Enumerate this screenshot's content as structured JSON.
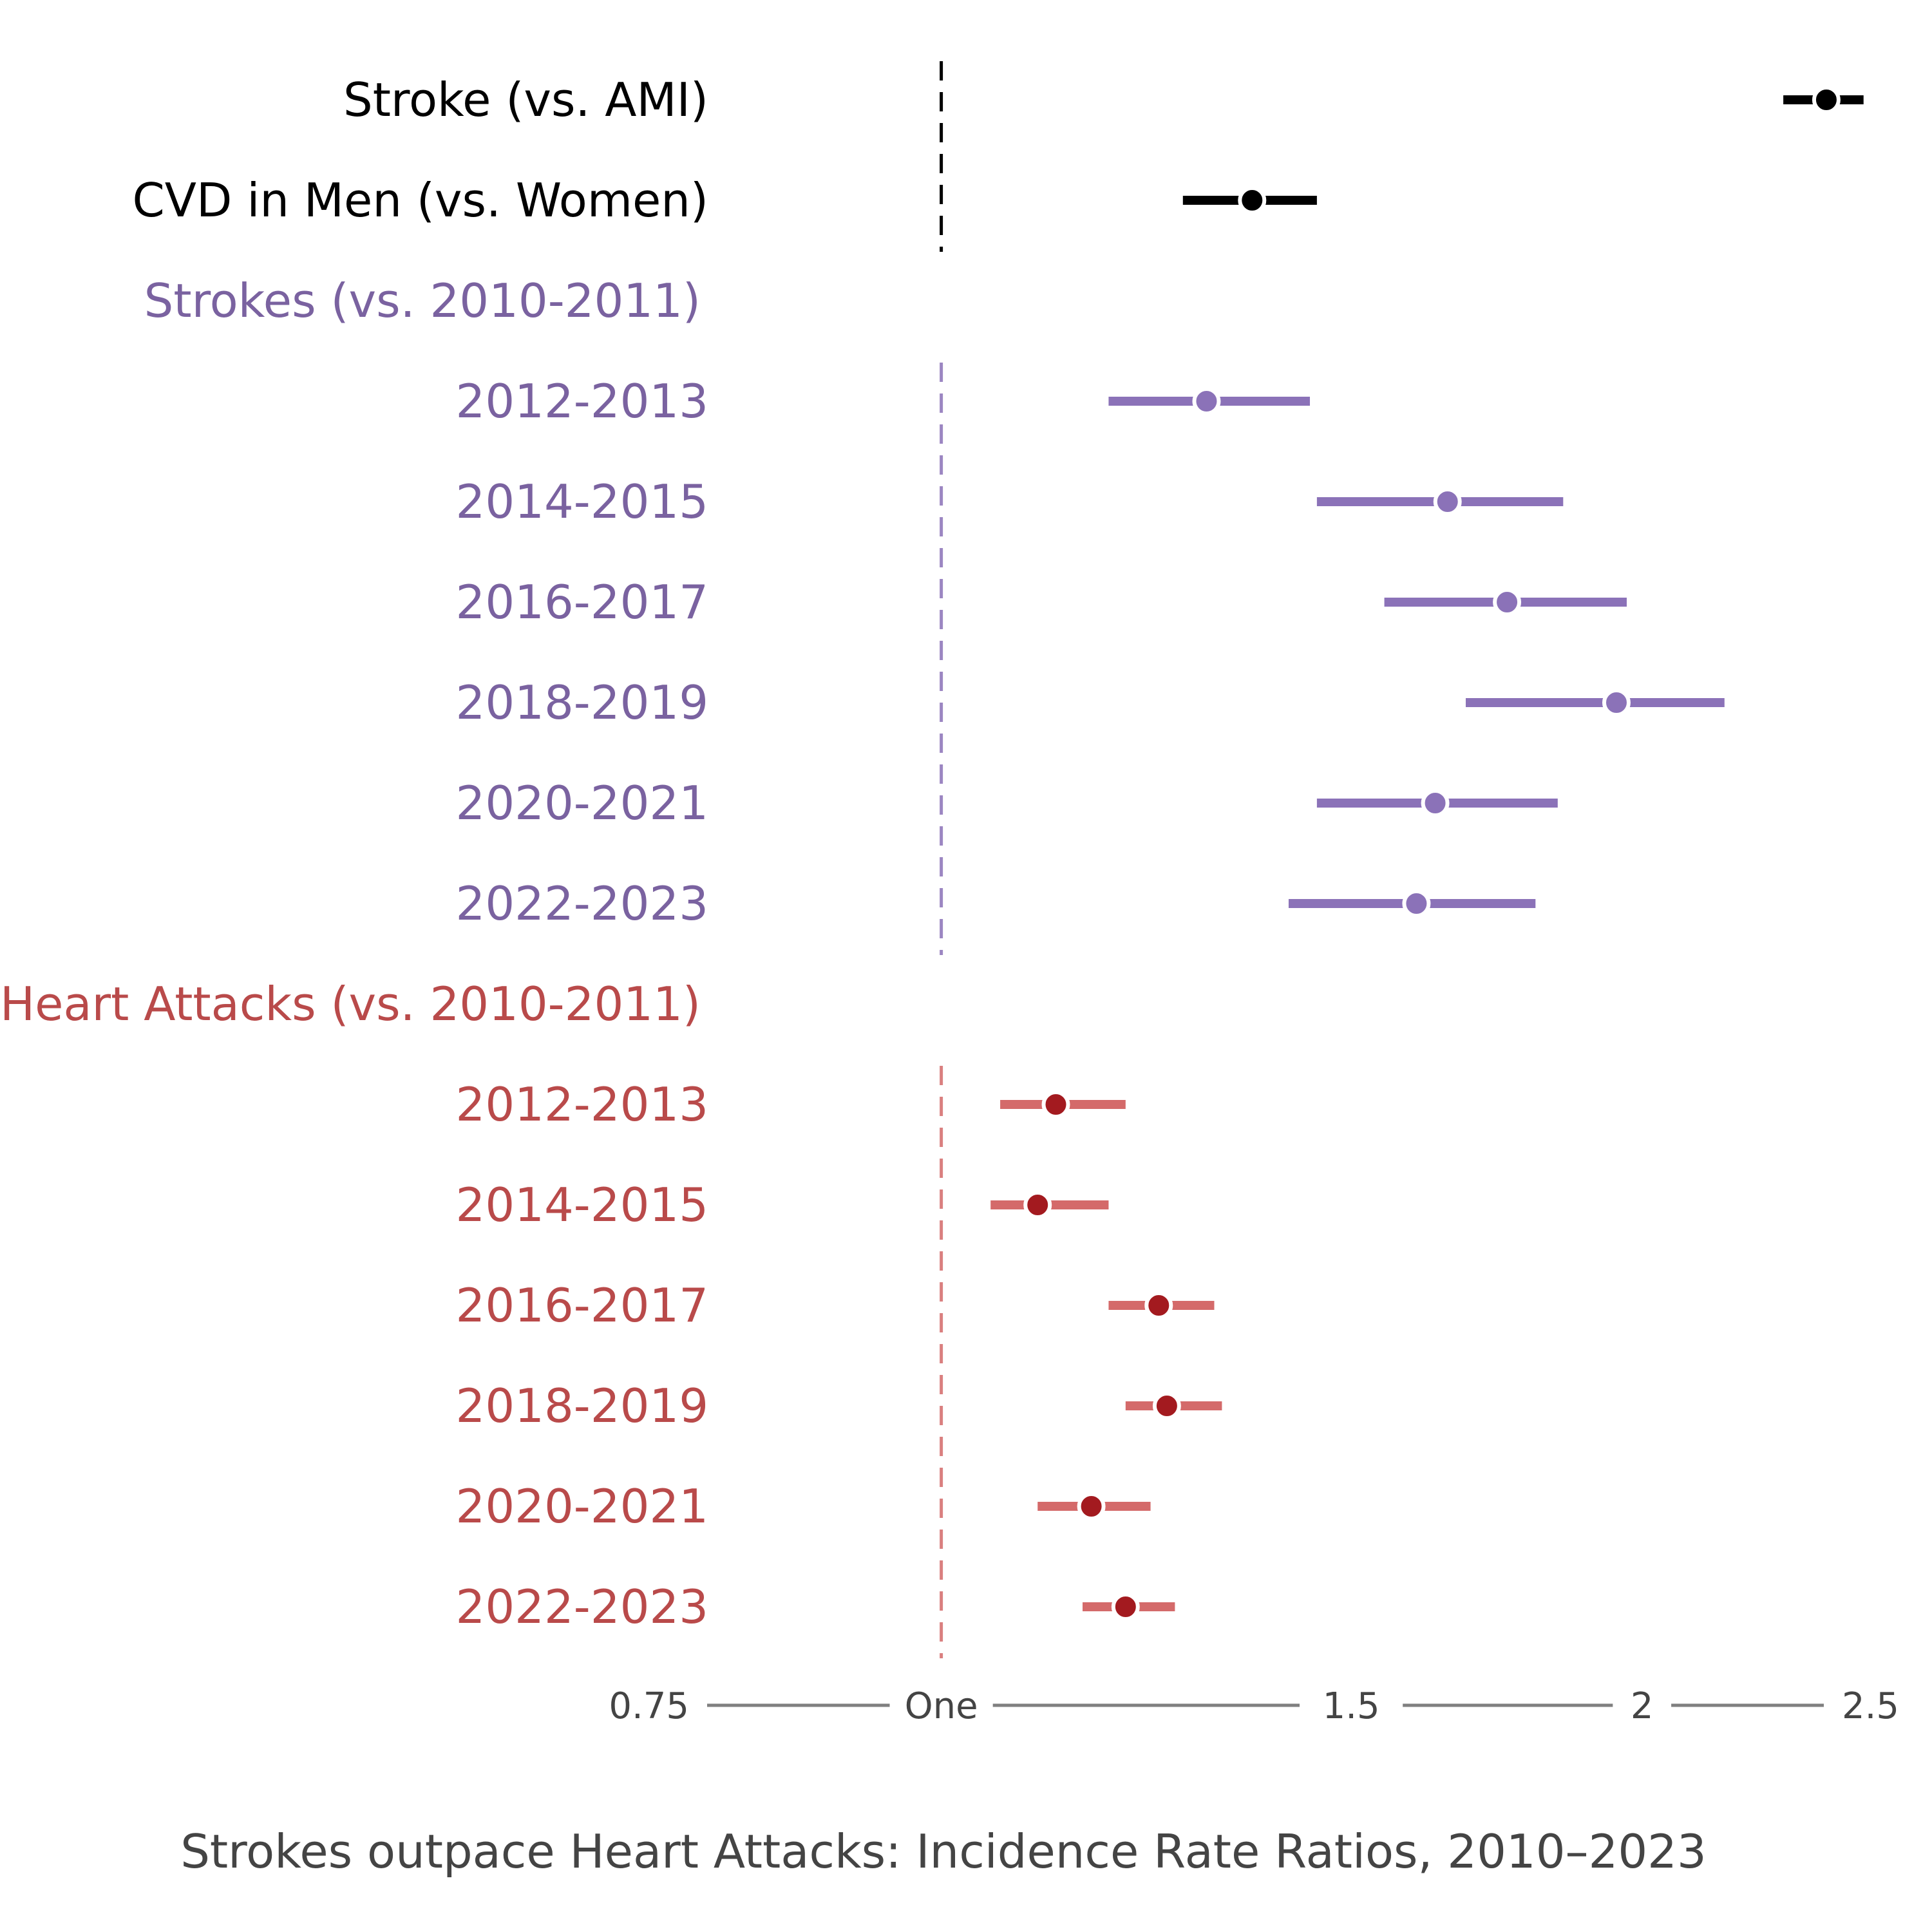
{
  "chart_data": {
    "type": "forest",
    "caption": "Strokes outpace Heart Attacks: Incidence Rate Ratios, 2010–2023",
    "x_axis": {
      "scale": "log",
      "ticks": [
        {
          "value": 0.75,
          "label": "0.75"
        },
        {
          "value": 1,
          "label": "One"
        },
        {
          "value": 1.5,
          "label": "1.5"
        },
        {
          "value": 2,
          "label": "2"
        },
        {
          "value": 2.5,
          "label": "2.5"
        }
      ],
      "range": [
        0.75,
        2.5
      ]
    },
    "reference_value": 1,
    "groups": [
      {
        "id": "overall",
        "header": "",
        "color": "#000000",
        "label_color": "#000000",
        "point_color": "#000000",
        "rows": [
          {
            "label": "Stroke (vs. AMI)",
            "estimate": 2.4,
            "low": 2.3,
            "high": 2.49
          },
          {
            "label": "CVD in Men (vs. Women)",
            "estimate": 1.36,
            "low": 1.27,
            "high": 1.45
          }
        ]
      },
      {
        "id": "strokes",
        "header": "Strokes (vs. 2010-2011)",
        "color": "#8b72b8",
        "label_color": "#7a62a0",
        "point_color": "#8b72b8",
        "rows": [
          {
            "label": "2012-2013",
            "estimate": 1.3,
            "low": 1.18,
            "high": 1.44
          },
          {
            "label": "2014-2015",
            "estimate": 1.65,
            "low": 1.45,
            "high": 1.85
          },
          {
            "label": "2016-2017",
            "estimate": 1.75,
            "low": 1.55,
            "high": 1.97
          },
          {
            "label": "2018-2019",
            "estimate": 1.95,
            "low": 1.68,
            "high": 2.17
          },
          {
            "label": "2020-2021",
            "estimate": 1.63,
            "low": 1.45,
            "high": 1.84
          },
          {
            "label": "2022-2023",
            "estimate": 1.6,
            "low": 1.41,
            "high": 1.8
          }
        ]
      },
      {
        "id": "heart_attacks",
        "header": "Heart Attacks (vs. 2010-2011)",
        "color": "#d46a6a",
        "label_color": "#b94a4a",
        "point_color": "#a31a1f",
        "rows": [
          {
            "label": "2012-2013",
            "estimate": 1.12,
            "low": 1.06,
            "high": 1.2
          },
          {
            "label": "2014-2015",
            "estimate": 1.1,
            "low": 1.05,
            "high": 1.18
          },
          {
            "label": "2016-2017",
            "estimate": 1.24,
            "low": 1.18,
            "high": 1.31
          },
          {
            "label": "2018-2019",
            "estimate": 1.25,
            "low": 1.2,
            "high": 1.32
          },
          {
            "label": "2020-2021",
            "estimate": 1.16,
            "low": 1.1,
            "high": 1.23
          },
          {
            "label": "2022-2023",
            "estimate": 1.2,
            "low": 1.15,
            "high": 1.26
          }
        ]
      }
    ],
    "axis_color": "#808080",
    "tick_label_color": "#444444",
    "caption_color": "#444444"
  }
}
